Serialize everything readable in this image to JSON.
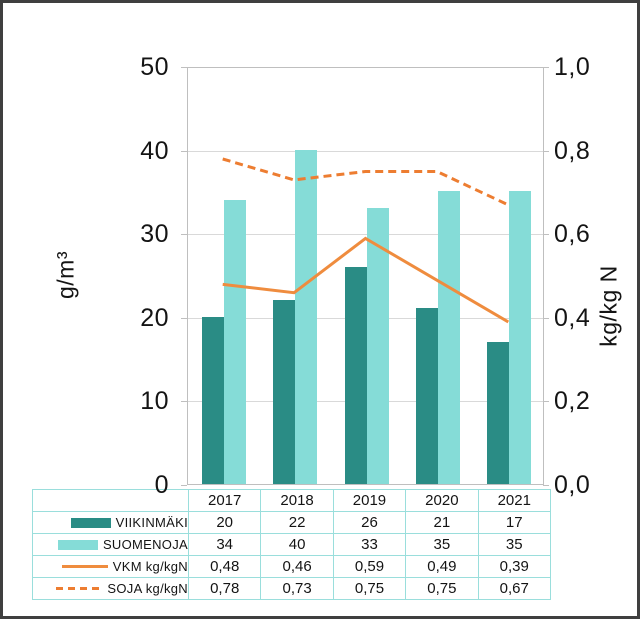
{
  "palette": {
    "viikinmaki_bar": "#2a8c85",
    "suomenoja_bar": "#85dcd7",
    "vkm_line": "#ef8c3e",
    "soja_line": "#ed7d31",
    "gridline": "#d9d9d9",
    "plot_border": "#bfbfbf",
    "table_border": "#9adedc",
    "text": "#141414"
  },
  "chart_data": {
    "type": "bar+line combo with data table legend",
    "categories": [
      "2017",
      "2018",
      "2019",
      "2020",
      "2021"
    ],
    "series": [
      {
        "name": "VIIKINMÄKI",
        "kind": "bar",
        "axis": "left",
        "color": "#2a8c85",
        "values": [
          20,
          22,
          26,
          21,
          17
        ],
        "display": [
          "20",
          "22",
          "26",
          "21",
          "17"
        ]
      },
      {
        "name": "SUOMENOJA",
        "kind": "bar",
        "axis": "left",
        "color": "#85dcd7",
        "values": [
          34,
          40,
          33,
          35,
          35
        ],
        "display": [
          "34",
          "40",
          "33",
          "35",
          "35"
        ]
      },
      {
        "name": "VKM kg/kgN",
        "kind": "line",
        "dash": "solid",
        "axis": "right",
        "color": "#ef8c3e",
        "values": [
          0.48,
          0.46,
          0.59,
          0.49,
          0.39
        ],
        "display": [
          "0,48",
          "0,46",
          "0,59",
          "0,49",
          "0,39"
        ]
      },
      {
        "name": "SOJA kg/kgN",
        "kind": "line",
        "dash": "dashed",
        "axis": "right",
        "color": "#ed7d31",
        "values": [
          0.78,
          0.73,
          0.75,
          0.75,
          0.67
        ],
        "display": [
          "0,78",
          "0,73",
          "0,75",
          "0,75",
          "0,67"
        ]
      }
    ],
    "left_axis": {
      "title": "g/m³",
      "min": 0,
      "max": 50,
      "ticks": [
        "50",
        "40",
        "30",
        "20",
        "10",
        "0"
      ]
    },
    "right_axis": {
      "title": "kg/kg N",
      "min": 0,
      "max": 1.0,
      "ticks": [
        "1,0",
        "0,8",
        "0,6",
        "0,4",
        "0,2",
        "0,0"
      ]
    },
    "grid": true,
    "legend_position": "table-left-of-data-table"
  }
}
